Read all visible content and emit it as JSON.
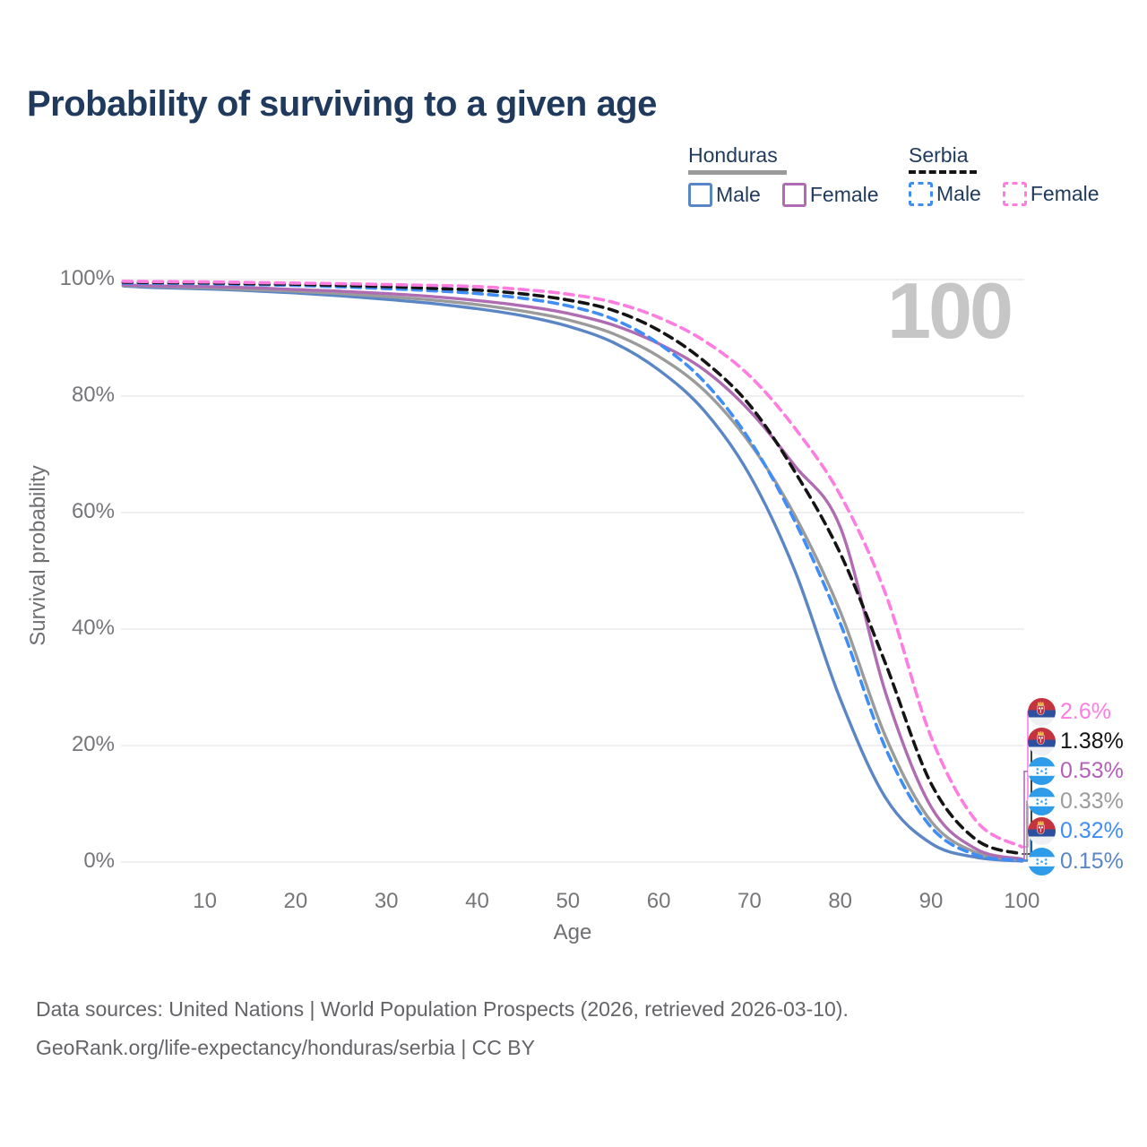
{
  "title": "Probability of surviving to a given age",
  "watermark_age_label": "100",
  "legend": {
    "groups": [
      {
        "name": "Honduras",
        "line_style": "solid",
        "swatch_color": "#9a9a9a",
        "items": [
          {
            "label": "Male",
            "color": "#5b86c5"
          },
          {
            "label": "Female",
            "color": "#b06cb3"
          }
        ]
      },
      {
        "name": "Serbia",
        "line_style": "dashed",
        "swatch_color": "#141414",
        "items": [
          {
            "label": "Male",
            "color": "#3f8df5"
          },
          {
            "label": "Female",
            "color": "#ff7ce0"
          }
        ]
      }
    ]
  },
  "chart_data": {
    "type": "line",
    "title": "Probability of surviving to a given age",
    "xlabel": "Age",
    "ylabel": "Survival probability",
    "grid": true,
    "legend_position": "top-right",
    "xlim": [
      0,
      100
    ],
    "ylim": [
      0,
      100
    ],
    "xticks": [
      10,
      20,
      30,
      40,
      50,
      60,
      70,
      80,
      90,
      100
    ],
    "yticks": [
      {
        "value": 0,
        "label": "0%"
      },
      {
        "value": 20,
        "label": "20%"
      },
      {
        "value": 40,
        "label": "40%"
      },
      {
        "value": 60,
        "label": "60%"
      },
      {
        "value": 80,
        "label": "80%"
      },
      {
        "value": 100,
        "label": "100%"
      }
    ],
    "ages": [
      1,
      5,
      10,
      15,
      20,
      25,
      30,
      35,
      40,
      45,
      50,
      55,
      60,
      65,
      70,
      75,
      80,
      85,
      90,
      95,
      100
    ],
    "series": [
      {
        "id": "honduras-male",
        "name": "Honduras Male",
        "color": "#5b86c5",
        "dash": "solid",
        "values_pct": [
          98.9,
          98.6,
          98.4,
          98.1,
          97.7,
          97.2,
          96.6,
          95.9,
          95.0,
          93.8,
          92.0,
          89.2,
          84.5,
          77.5,
          66.5,
          50.0,
          28.0,
          11.0,
          3.2,
          0.8,
          0.15
        ]
      },
      {
        "id": "honduras-combined",
        "name": "Honduras Combined",
        "color": "#9b9b9b",
        "dash": "solid",
        "values_pct": [
          99.0,
          98.8,
          98.6,
          98.3,
          98.0,
          97.6,
          97.1,
          96.5,
          95.7,
          94.6,
          93.1,
          90.7,
          86.8,
          81.0,
          72.0,
          59.5,
          43.0,
          21.5,
          7.0,
          1.6,
          0.33
        ]
      },
      {
        "id": "honduras-female",
        "name": "Honduras Female",
        "color": "#b06cb3",
        "dash": "solid",
        "values_pct": [
          99.1,
          98.9,
          98.8,
          98.6,
          98.3,
          98.0,
          97.6,
          97.1,
          96.4,
          95.5,
          94.2,
          92.2,
          89.0,
          84.5,
          77.5,
          68.0,
          57.5,
          29.0,
          9.5,
          2.2,
          0.53
        ]
      },
      {
        "id": "serbia-male",
        "name": "Serbia Male",
        "color": "#3f8df5",
        "dash": "dashed",
        "values_pct": [
          99.4,
          99.35,
          99.3,
          99.15,
          99.0,
          98.75,
          98.45,
          98.1,
          97.6,
          96.8,
          95.5,
          93.2,
          89.0,
          82.5,
          72.5,
          58.5,
          41.0,
          19.5,
          6.0,
          1.2,
          0.32
        ]
      },
      {
        "id": "serbia-combined",
        "name": "Serbia Combined",
        "color": "#141414",
        "dash": "dashed",
        "values_pct": [
          99.55,
          99.5,
          99.45,
          99.3,
          99.2,
          99.0,
          98.8,
          98.5,
          98.2,
          97.55,
          96.5,
          94.7,
          91.3,
          86.0,
          78.5,
          67.0,
          53.0,
          34.0,
          13.5,
          3.8,
          1.38
        ]
      },
      {
        "id": "serbia-female",
        "name": "Serbia Female",
        "color": "#ff7ce0",
        "dash": "dashed",
        "values_pct": [
          99.7,
          99.65,
          99.6,
          99.5,
          99.4,
          99.3,
          99.15,
          99.0,
          98.8,
          98.3,
          97.5,
          96.1,
          93.5,
          89.5,
          83.5,
          74.5,
          63.0,
          46.0,
          21.5,
          7.0,
          2.6
        ]
      }
    ]
  },
  "end_labels": [
    {
      "series_id": "serbia-female",
      "value": "2.6%",
      "flag": "serbia",
      "color": "#ff7ce0"
    },
    {
      "series_id": "serbia-combined",
      "value": "1.38%",
      "flag": "serbia",
      "color": "#141414"
    },
    {
      "series_id": "honduras-female",
      "value": "0.53%",
      "flag": "honduras",
      "color": "#b45fb8"
    },
    {
      "series_id": "honduras-combined",
      "value": "0.33%",
      "flag": "honduras",
      "color": "#9b9b9b"
    },
    {
      "series_id": "serbia-male",
      "value": "0.32%",
      "flag": "serbia",
      "color": "#3f8df5"
    },
    {
      "series_id": "honduras-male",
      "value": "0.15%",
      "flag": "honduras",
      "color": "#5b86c5"
    }
  ],
  "footer": {
    "line1": "Data sources: United Nations | World Population Prospects (2026, retrieved 2026-03-10).",
    "line2": "GeoRank.org/life-expectancy/honduras/serbia | CC BY"
  }
}
